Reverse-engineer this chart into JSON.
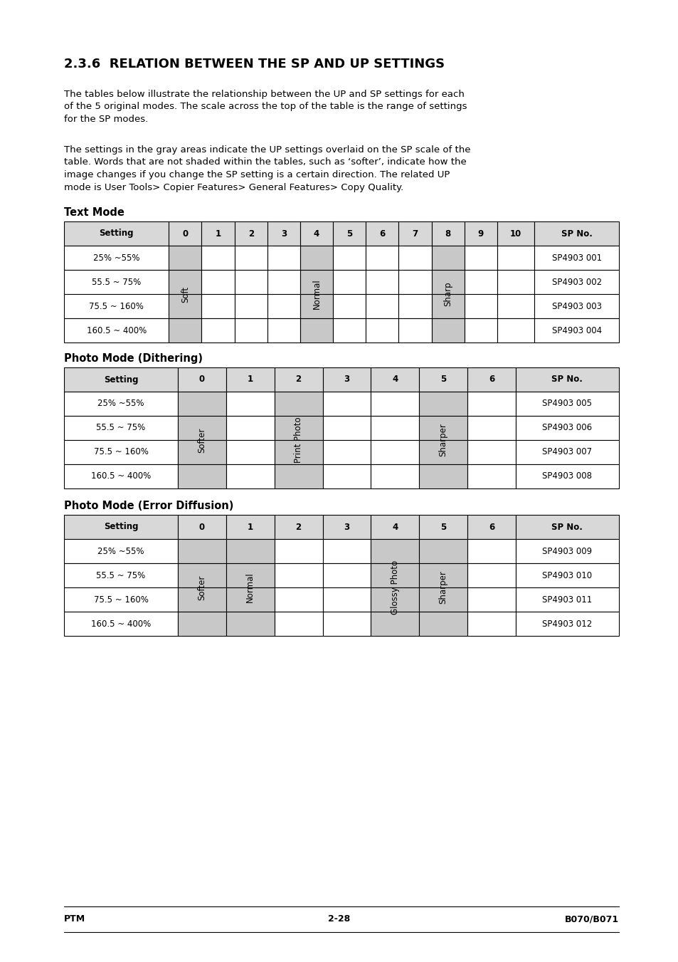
{
  "title": "2.3.6  RELATION BETWEEN THE SP AND UP SETTINGS",
  "para1": "The tables below illustrate the relationship between the UP and SP settings for each of the 5 original modes. The scale across the top of the table is the range of settings for the SP modes.",
  "para2": "The settings in the gray areas indicate the UP settings overlaid on the SP scale of the table. Words that are not shaded within the tables, such as ‘softer’, indicate how the image changes if you change the SP setting is a certain direction. The related UP mode is User Tools> Copier Features> General Features> Copy Quality.",
  "table1_title": "Text Mode",
  "table1_headers": [
    "Setting",
    "0",
    "1",
    "2",
    "3",
    "4",
    "5",
    "6",
    "7",
    "8",
    "9",
    "10",
    "SP No."
  ],
  "table1_rows": [
    [
      "25% ~55%",
      "",
      "",
      "",
      "",
      "",
      "",
      "",
      "",
      "",
      "",
      "",
      "SP4903 001"
    ],
    [
      "55.5 ~ 75%",
      "",
      "",
      "",
      "",
      "",
      "",
      "",
      "",
      "",
      "",
      "",
      "SP4903 002"
    ],
    [
      "75.5 ~ 160%",
      "",
      "",
      "",
      "",
      "",
      "",
      "",
      "",
      "",
      "",
      "",
      "SP4903 003"
    ],
    [
      "160.5 ~ 400%",
      "",
      "",
      "",
      "",
      "",
      "",
      "",
      "",
      "",
      "",
      "",
      "SP4903 004"
    ]
  ],
  "table1_gray_cols": [
    1,
    5,
    9
  ],
  "table1_rotated": [
    {
      "col": 1,
      "text": "Soft"
    },
    {
      "col": 5,
      "text": "Normal"
    },
    {
      "col": 9,
      "text": "Sharp"
    }
  ],
  "table2_title": "Photo Mode (Dithering)",
  "table2_headers": [
    "Setting",
    "0",
    "1",
    "2",
    "3",
    "4",
    "5",
    "6",
    "SP No."
  ],
  "table2_rows": [
    [
      "25% ~55%",
      "",
      "",
      "",
      "",
      "",
      "",
      "",
      "SP4903 005"
    ],
    [
      "55.5 ~ 75%",
      "",
      "",
      "",
      "",
      "",
      "",
      "",
      "SP4903 006"
    ],
    [
      "75.5 ~ 160%",
      "",
      "",
      "",
      "",
      "",
      "",
      "",
      "SP4903 007"
    ],
    [
      "160.5 ~ 400%",
      "",
      "",
      "",
      "",
      "",
      "",
      "",
      "SP4903 008"
    ]
  ],
  "table2_gray_cols": [
    1,
    3,
    6
  ],
  "table2_rotated": [
    {
      "col": 1,
      "text": "Softer"
    },
    {
      "col": 3,
      "text": "Print Photo"
    },
    {
      "col": 6,
      "text": "Sharper"
    }
  ],
  "table3_title": "Photo Mode (Error Diffusion)",
  "table3_headers": [
    "Setting",
    "0",
    "1",
    "2",
    "3",
    "4",
    "5",
    "6",
    "SP No."
  ],
  "table3_rows": [
    [
      "25% ~55%",
      "",
      "",
      "",
      "",
      "",
      "",
      "",
      "SP4903 009"
    ],
    [
      "55.5 ~ 75%",
      "",
      "",
      "",
      "",
      "",
      "",
      "",
      "SP4903 010"
    ],
    [
      "75.5 ~ 160%",
      "",
      "",
      "",
      "",
      "",
      "",
      "",
      "SP4903 011"
    ],
    [
      "160.5 ~ 400%",
      "",
      "",
      "",
      "",
      "",
      "",
      "",
      "SP4903 012"
    ]
  ],
  "table3_gray_cols": [
    1,
    2,
    5,
    6
  ],
  "table3_rotated": [
    {
      "col": 1,
      "text": "Softer"
    },
    {
      "col": 2,
      "text": "Normal"
    },
    {
      "col": 5,
      "text": "Glossy Photo"
    },
    {
      "col": 6,
      "text": "Sharper"
    }
  ],
  "footer_left": "PTM",
  "footer_center": "2-28",
  "footer_right": "B070/B071"
}
